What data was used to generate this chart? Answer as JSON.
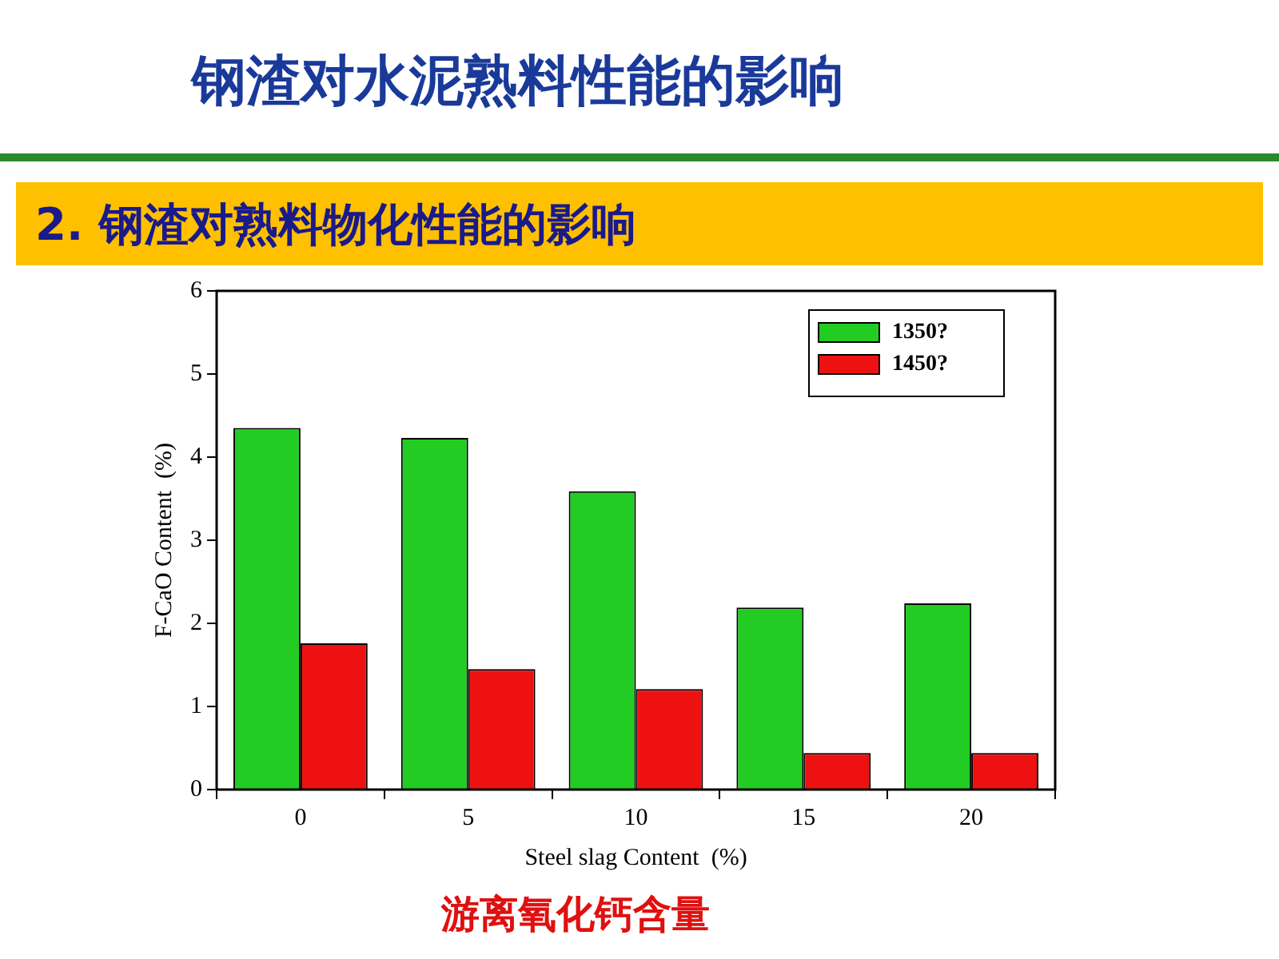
{
  "chart_data": {
    "type": "bar",
    "title": "钢渣对水泥熟料性能的影响",
    "subtitle": "2. 钢渣对熟料物化性能的影响",
    "xlabel": "Steel slag Content  (%)",
    "ylabel": "F-CaO Content  (%)",
    "categories": [
      "0",
      "5",
      "10",
      "15",
      "20"
    ],
    "series": [
      {
        "name": "1350?",
        "color": "#22cc22",
        "values": [
          4.35,
          4.23,
          3.59,
          2.19,
          2.24
        ]
      },
      {
        "name": "1450?",
        "color": "#ee1111",
        "values": [
          1.76,
          1.45,
          1.21,
          0.44,
          0.44
        ]
      }
    ],
    "ylim": [
      0,
      6
    ],
    "yticks": [
      0,
      1,
      2,
      3,
      4,
      5,
      6
    ],
    "grid": false,
    "legend": "top right",
    "annotations": [
      "游离氧化钙含量"
    ]
  }
}
